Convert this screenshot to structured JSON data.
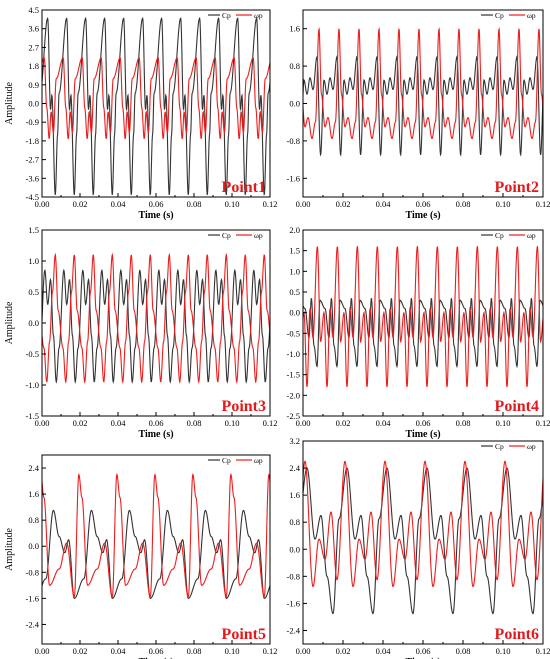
{
  "colors": {
    "cp": "#333333",
    "wp": "#ee1c1c",
    "point_label": "#e31a1c",
    "frame": "#000000"
  },
  "chart_data": [
    {
      "type": "line",
      "point_label": "Point1",
      "xlabel": "Time (s)",
      "ylabel": "Amplitude",
      "xlim": [
        0,
        0.12
      ],
      "ylim": [
        -4.5,
        4.5
      ],
      "x_ticks": [
        0,
        0.02,
        0.04,
        0.06,
        0.08,
        0.1,
        0.12
      ],
      "x_tick_labels": [
        "0.00",
        "0.02",
        "0.04",
        "0.06",
        "0.08",
        "0.10",
        "0.12"
      ],
      "y_ticks": [
        -4.5,
        -3.6,
        -2.7,
        -1.8,
        -0.9,
        0,
        0.9,
        1.8,
        2.7,
        3.6,
        4.5
      ],
      "y_tick_labels": [
        "-4.5",
        "-3.6",
        "-2.7",
        "-1.8",
        "-0.9",
        "0.0",
        "0.9",
        "1.8",
        "2.7",
        "3.6",
        "4.5"
      ],
      "legend": [
        "Cp",
        "ωp"
      ],
      "legend_position": "top-right",
      "series": [
        {
          "name": "Cp",
          "period": 0.01,
          "peaks": [
            [
              0.3,
              4.1
            ],
            [
              0.45,
              -0.3
            ],
            [
              0.52,
              0.4
            ],
            [
              0.7,
              -4.4
            ],
            [
              0.82,
              -1.5
            ],
            [
              0.9,
              0.5
            ]
          ]
        },
        {
          "name": "ωp",
          "period": 0.01,
          "peaks": [
            [
              0.12,
              2.2
            ],
            [
              0.25,
              -0.2
            ],
            [
              0.38,
              -1.7
            ],
            [
              0.48,
              -0.4
            ],
            [
              0.6,
              -1.4
            ],
            [
              0.75,
              1.2
            ]
          ]
        }
      ]
    },
    {
      "type": "line",
      "point_label": "Point2",
      "xlabel": "Time (s)",
      "ylabel": "",
      "xlim": [
        0,
        0.12
      ],
      "ylim": [
        -2.0,
        2.0
      ],
      "x_ticks": [
        0,
        0.02,
        0.04,
        0.06,
        0.08,
        0.1,
        0.12
      ],
      "x_tick_labels": [
        "0.00",
        "0.02",
        "0.04",
        "0.06",
        "0.08",
        "0.10",
        "0.12"
      ],
      "y_ticks": [
        -1.6,
        -0.8,
        0,
        0.8,
        1.6
      ],
      "y_tick_labels": [
        "-1.6",
        "-0.8",
        "0.0",
        "0.8",
        "1.6"
      ],
      "legend": [
        "Cp",
        "ωp"
      ],
      "legend_position": "top-right",
      "series": [
        {
          "name": "Cp",
          "period": 0.01,
          "peaks": [
            [
              0.05,
              0.5
            ],
            [
              0.2,
              0.2
            ],
            [
              0.35,
              0.55
            ],
            [
              0.5,
              0.3
            ],
            [
              0.7,
              1.0
            ],
            [
              0.88,
              -1.1
            ]
          ]
        },
        {
          "name": "ωp",
          "period": 0.01,
          "peaks": [
            [
              0.1,
              -0.5
            ],
            [
              0.25,
              -0.3
            ],
            [
              0.45,
              -0.75
            ],
            [
              0.62,
              -0.4
            ],
            [
              0.8,
              1.6
            ],
            [
              0.92,
              0.2
            ]
          ]
        }
      ]
    },
    {
      "type": "line",
      "point_label": "Point3",
      "xlabel": "Time (s)",
      "ylabel": "Amplitude",
      "xlim": [
        0,
        0.12
      ],
      "ylim": [
        -1.5,
        1.5
      ],
      "x_ticks": [
        0,
        0.02,
        0.04,
        0.06,
        0.08,
        0.1,
        0.12
      ],
      "x_tick_labels": [
        "0.00",
        "0.02",
        "0.04",
        "0.06",
        "0.08",
        "0.10",
        "0.12"
      ],
      "y_ticks": [
        -1.5,
        -1.0,
        -0.5,
        0,
        0.5,
        1.0,
        1.5
      ],
      "y_tick_labels": [
        "-1.5",
        "-1.0",
        "-0.5",
        "0.0",
        "0.5",
        "1.0",
        "1.5"
      ],
      "legend": [
        "Cp",
        "ωp"
      ],
      "legend_position": "top-right",
      "series": [
        {
          "name": "Cp",
          "period": 0.01,
          "peaks": [
            [
              0.15,
              0.85
            ],
            [
              0.3,
              0.3
            ],
            [
              0.45,
              0.7
            ],
            [
              0.6,
              -0.2
            ],
            [
              0.75,
              -0.95
            ],
            [
              0.9,
              -0.4
            ]
          ]
        },
        {
          "name": "ωp",
          "period": 0.01,
          "peaks": [
            [
              0.1,
              -0.4
            ],
            [
              0.25,
              -0.95
            ],
            [
              0.4,
              -0.3
            ],
            [
              0.55,
              0.5
            ],
            [
              0.7,
              1.1
            ],
            [
              0.85,
              0.2
            ]
          ]
        }
      ]
    },
    {
      "type": "line",
      "point_label": "Point4",
      "xlabel": "Time (s)",
      "ylabel": "",
      "xlim": [
        0,
        0.12
      ],
      "ylim": [
        -2.5,
        2.0
      ],
      "x_ticks": [
        0,
        0.02,
        0.04,
        0.06,
        0.08,
        0.1,
        0.12
      ],
      "x_tick_labels": [
        "0.00",
        "0.02",
        "0.04",
        "0.06",
        "0.08",
        "0.10",
        "0.12"
      ],
      "y_ticks": [
        -2.5,
        -2.0,
        -1.5,
        -1.0,
        -0.5,
        0,
        0.5,
        1.0,
        1.5,
        2.0
      ],
      "y_tick_labels": [
        "-2.5",
        "-2.0",
        "-1.5",
        "-1.0",
        "-0.5",
        "0.0",
        "0.5",
        "1.0",
        "1.5",
        "2.0"
      ],
      "legend": [
        "Cp",
        "ωp"
      ],
      "legend_position": "top-right",
      "series": [
        {
          "name": "Cp",
          "period": 0.01,
          "peaks": [
            [
              0.1,
              0.1
            ],
            [
              0.3,
              -0.6
            ],
            [
              0.42,
              0.35
            ],
            [
              0.55,
              -0.8
            ],
            [
              0.7,
              -1.3
            ],
            [
              0.85,
              0.3
            ]
          ]
        },
        {
          "name": "ωp",
          "period": 0.01,
          "peaks": [
            [
              0.05,
              0.0
            ],
            [
              0.2,
              -1.8
            ],
            [
              0.35,
              0.1
            ],
            [
              0.5,
              -0.6
            ],
            [
              0.72,
              1.6
            ],
            [
              0.88,
              -0.7
            ]
          ]
        }
      ]
    },
    {
      "type": "line",
      "point_label": "Point5",
      "xlabel": "Time (s)",
      "ylabel": "Amplitude",
      "xlim": [
        0,
        0.12
      ],
      "ylim": [
        -3.0,
        2.8
      ],
      "x_ticks": [
        0,
        0.02,
        0.04,
        0.06,
        0.08,
        0.1,
        0.12
      ],
      "x_tick_labels": [
        "0.00",
        "0.02",
        "0.04",
        "0.06",
        "0.08",
        "0.10",
        "0.12"
      ],
      "y_ticks": [
        -2.4,
        -1.6,
        -0.8,
        0,
        0.8,
        1.6,
        2.4
      ],
      "y_tick_labels": [
        "-2.4",
        "-1.6",
        "-0.8",
        "0.0",
        "0.8",
        "1.6",
        "2.4"
      ],
      "legend": [
        "Cp",
        "ωp"
      ],
      "legend_position": "top-right",
      "series": [
        {
          "name": "Cp",
          "period": 0.02,
          "peaks": [
            [
              0.1,
              -1.0
            ],
            [
              0.3,
              1.1
            ],
            [
              0.45,
              0.3
            ],
            [
              0.6,
              -0.2
            ],
            [
              0.7,
              0.2
            ],
            [
              0.85,
              -1.6
            ]
          ]
        },
        {
          "name": "ωp",
          "period": 0.02,
          "peaks": [
            [
              0.05,
              1.5
            ],
            [
              0.2,
              -1.2
            ],
            [
              0.45,
              -0.7
            ],
            [
              0.65,
              0.1
            ],
            [
              0.85,
              -1.55
            ],
            [
              0.97,
              2.2
            ]
          ]
        }
      ]
    },
    {
      "type": "line",
      "point_label": "Point6",
      "xlabel": "Time (s)",
      "ylabel": "",
      "xlim": [
        0,
        0.12
      ],
      "ylim": [
        -2.8,
        3.2
      ],
      "x_ticks": [
        0,
        0.02,
        0.04,
        0.06,
        0.08,
        0.1,
        0.12
      ],
      "x_tick_labels": [
        "0.00",
        "0.02",
        "0.04",
        "0.06",
        "0.08",
        "0.10",
        "0.12"
      ],
      "y_ticks": [
        -2.4,
        -1.6,
        -0.8,
        0,
        0.8,
        1.6,
        2.4,
        3.2
      ],
      "y_tick_labels": [
        "-2.4",
        "-1.6",
        "-0.8",
        "0.0",
        "0.8",
        "1.6",
        "2.4",
        "3.2"
      ],
      "legend": [
        "Cp",
        "ωp"
      ],
      "legend_position": "top-right",
      "series": [
        {
          "name": "Cp",
          "period": 0.02,
          "peaks": [
            [
              0.1,
              2.4
            ],
            [
              0.3,
              0.3
            ],
            [
              0.45,
              1.0
            ],
            [
              0.6,
              -0.8
            ],
            [
              0.75,
              -1.9
            ],
            [
              0.9,
              0.9
            ]
          ]
        },
        {
          "name": "ωp",
          "period": 0.02,
          "peaks": [
            [
              0.05,
              2.6
            ],
            [
              0.25,
              -1.1
            ],
            [
              0.4,
              0.3
            ],
            [
              0.55,
              -0.3
            ],
            [
              0.7,
              1.1
            ],
            [
              0.85,
              -0.9
            ]
          ]
        }
      ]
    }
  ]
}
